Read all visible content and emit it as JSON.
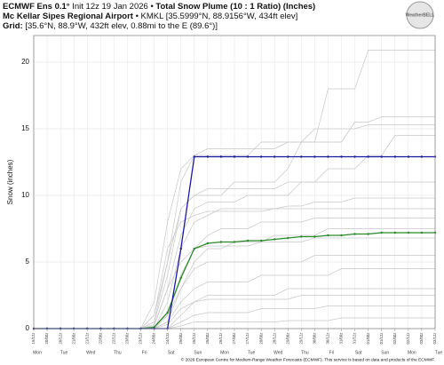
{
  "chart_data": {
    "type": "line",
    "title_model": "ECMWF Ens 0.1°",
    "title_init": "Init 12z 19 Jan 2026 •",
    "title": "Total Snow Plume (10 : 1 Ratio) (Inches)",
    "station": "Mc Kellar Sipes Regional Airport",
    "station_info": "• KMKL [35.5999°N, 88.9156°W, 434ft elev]",
    "grid_label": "Grid:",
    "grid_info": "[35.6°N, 88.9°W, 432ft elev, 0.88mi to the E (89.6°)]",
    "logo": "WeatherBELL",
    "y_label": "Snow (inches)",
    "footer": "© 2026 European Centre for Medium-Range Weather Forecasts (ECMWF). This service is based on data and products of the ECMWF.",
    "grid": true,
    "xlim": [
      0,
      360
    ],
    "ylim": [
      0,
      22
    ],
    "yticks": [
      0,
      5,
      10,
      15,
      20
    ],
    "xticks": [
      {
        "value": 0,
        "label": "19/12z"
      },
      {
        "value": 12,
        "label": "20/00z"
      },
      {
        "value": 24,
        "label": "20/12z"
      },
      {
        "value": 36,
        "label": "21/00z"
      },
      {
        "value": 48,
        "label": "21/12z"
      },
      {
        "value": 60,
        "label": "22/00z"
      },
      {
        "value": 72,
        "label": "22/12z"
      },
      {
        "value": 84,
        "label": "23/00z"
      },
      {
        "value": 96,
        "label": "23/12z"
      },
      {
        "value": 108,
        "label": "24/00z"
      },
      {
        "value": 120,
        "label": "24/12z"
      },
      {
        "value": 132,
        "label": "25/00z"
      },
      {
        "value": 144,
        "label": "25/12z"
      },
      {
        "value": 156,
        "label": "26/00z"
      },
      {
        "value": 168,
        "label": "26/12z"
      },
      {
        "value": 180,
        "label": "27/00z"
      },
      {
        "value": 192,
        "label": "27/12z"
      },
      {
        "value": 204,
        "label": "28/00z"
      },
      {
        "value": 216,
        "label": "28/12z"
      },
      {
        "value": 228,
        "label": "29/00z"
      },
      {
        "value": 240,
        "label": "29/12z"
      },
      {
        "value": 252,
        "label": "30/00z"
      },
      {
        "value": 264,
        "label": "30/12z"
      },
      {
        "value": 276,
        "label": "31/00z"
      },
      {
        "value": 288,
        "label": "31/12z"
      },
      {
        "value": 300,
        "label": "01/00z"
      },
      {
        "value": 312,
        "label": "01/12z"
      },
      {
        "value": 324,
        "label": "02/00z"
      },
      {
        "value": 336,
        "label": "02/12z"
      },
      {
        "value": 348,
        "label": "03/00z"
      },
      {
        "value": 360,
        "label": "03/12z"
      }
    ],
    "day_ticks": [
      {
        "value": 0,
        "label": "Mon"
      },
      {
        "value": 24,
        "label": "Tue"
      },
      {
        "value": 48,
        "label": "Wed"
      },
      {
        "value": 72,
        "label": "Thu"
      },
      {
        "value": 96,
        "label": "Fri"
      },
      {
        "value": 120,
        "label": "Sat"
      },
      {
        "value": 144,
        "label": "Sun"
      },
      {
        "value": 168,
        "label": "Mon"
      },
      {
        "value": 192,
        "label": "Tue"
      },
      {
        "value": 216,
        "label": "Wed"
      },
      {
        "value": 240,
        "label": "Thu"
      },
      {
        "value": 264,
        "label": "Fri"
      },
      {
        "value": 288,
        "label": "Sat"
      },
      {
        "value": 312,
        "label": "Sun"
      },
      {
        "value": 336,
        "label": "Mon"
      },
      {
        "value": 360,
        "label": "Tue"
      }
    ],
    "x": [
      0,
      12,
      24,
      36,
      48,
      60,
      72,
      84,
      96,
      108,
      120,
      132,
      144,
      156,
      168,
      180,
      192,
      204,
      216,
      228,
      240,
      252,
      264,
      276,
      288,
      300,
      312,
      324,
      336,
      348,
      360
    ],
    "series": [
      {
        "color": "#c8c8c8",
        "values": [
          0,
          0,
          0,
          0,
          0,
          0,
          0,
          0,
          0,
          1,
          5,
          11,
          13,
          13.5,
          13.5,
          13.5,
          13.5,
          13.5,
          13.5,
          14,
          14,
          14,
          18,
          18,
          18,
          20.9,
          20.9,
          20.9,
          20.9,
          20.9,
          20.9
        ]
      },
      {
        "color": "#c8c8c8",
        "values": [
          0,
          0,
          0,
          0,
          0,
          0,
          0,
          0,
          0,
          0.5,
          4,
          9,
          10,
          10,
          10,
          11,
          11,
          11,
          11,
          12,
          14,
          14,
          14,
          14,
          15.5,
          15.5,
          15.9,
          15.9,
          15.9,
          15.9,
          15.9
        ]
      },
      {
        "color": "#c8c8c8",
        "values": [
          0,
          0,
          0,
          0,
          0,
          0,
          0,
          0,
          0,
          2,
          8,
          12,
          13,
          13,
          13,
          13,
          13,
          14,
          14,
          14,
          14,
          15,
          15,
          15,
          15,
          15.3,
          15.3,
          15.3,
          15.3,
          15.3,
          15.3
        ]
      },
      {
        "color": "#c8c8c8",
        "values": [
          0,
          0,
          0,
          0,
          0,
          0,
          0,
          0,
          0,
          0.3,
          3,
          7,
          9,
          9.5,
          9.5,
          9.5,
          10,
          10,
          10,
          10,
          11,
          11,
          12,
          12,
          12,
          13,
          13,
          14.5,
          14.5,
          14.5,
          14.5
        ]
      },
      {
        "color": "#c8c8c8",
        "values": [
          0,
          0,
          0,
          0,
          0,
          0,
          0,
          0,
          0,
          0.5,
          5,
          9,
          10,
          10.5,
          10.5,
          10.5,
          10.5,
          10.5,
          10.5,
          11,
          11,
          11,
          11,
          11,
          11,
          11,
          11,
          11,
          11,
          11,
          11
        ]
      },
      {
        "color": "#c8c8c8",
        "values": [
          0,
          0,
          0,
          0,
          0,
          0,
          0,
          0,
          0,
          0,
          2,
          6,
          8,
          8.5,
          9,
          9,
          9,
          9,
          9,
          9.2,
          9.2,
          9.5,
          9.5,
          9.5,
          9.8,
          9.8,
          9.8,
          9.8,
          9.8,
          9.8,
          9.8
        ]
      },
      {
        "color": "#c8c8c8",
        "values": [
          0,
          0,
          0,
          0,
          0,
          0,
          0,
          0,
          0,
          1,
          6,
          8,
          8.5,
          8.8,
          8.8,
          8.8,
          8.8,
          8.8,
          9,
          9,
          9,
          9,
          9,
          9,
          9,
          9,
          9,
          9,
          9,
          9,
          9
        ]
      },
      {
        "color": "#c8c8c8",
        "values": [
          0,
          0,
          0,
          0,
          0,
          0,
          0,
          0,
          0,
          0,
          1,
          4,
          6,
          7,
          7.5,
          7.5,
          7.5,
          8,
          8,
          8,
          8,
          8.3,
          8.3,
          8.3,
          8.3,
          8.3,
          8.3,
          8.3,
          8.3,
          8.3,
          8.3
        ]
      },
      {
        "color": "#c8c8c8",
        "values": [
          0,
          0,
          0,
          0,
          0,
          0,
          0,
          0,
          0,
          0,
          0.5,
          3,
          5,
          6,
          6,
          6.5,
          6.5,
          6.5,
          7,
          7,
          7,
          7,
          7.5,
          7.5,
          7.5,
          7.5,
          7.5,
          7.5,
          7.5,
          7.5,
          7.5
        ]
      },
      {
        "color": "#c8c8c8",
        "values": [
          0,
          0,
          0,
          0,
          0,
          0,
          0,
          0,
          0,
          0.2,
          3,
          5,
          6,
          6.2,
          6.2,
          6.2,
          6.2,
          6.5,
          6.5,
          6.5,
          6.5,
          6.8,
          6.8,
          6.8,
          6.8,
          6.8,
          6.8,
          6.8,
          6.8,
          6.8,
          6.8
        ]
      },
      {
        "color": "#c8c8c8",
        "values": [
          0,
          0,
          0,
          0,
          0,
          0,
          0,
          0,
          0,
          0,
          1,
          3,
          4.5,
          5,
          5,
          5,
          5,
          5,
          5,
          5,
          5,
          5.5,
          5.5,
          5.5,
          5.5,
          5.5,
          5.5,
          5.5,
          5.5,
          5.5,
          5.5
        ]
      },
      {
        "color": "#c8c8c8",
        "values": [
          0,
          0,
          0,
          0,
          0,
          0,
          0,
          0,
          0,
          0,
          0.5,
          2,
          3,
          3.5,
          3.5,
          3.5,
          3.5,
          4,
          4,
          4,
          4,
          4,
          4,
          4.5,
          4.5,
          4.5,
          4.5,
          4.5,
          4.5,
          4.5,
          4.5
        ]
      },
      {
        "color": "#c8c8c8",
        "values": [
          0,
          0,
          0,
          0,
          0,
          0,
          0,
          0,
          0,
          0,
          0,
          1,
          2,
          2.5,
          2.5,
          2.5,
          2.5,
          2.5,
          2.5,
          3,
          3,
          3,
          3,
          3,
          3,
          3,
          3,
          3,
          3,
          3,
          3
        ]
      },
      {
        "color": "#c8c8c8",
        "values": [
          0,
          0,
          0,
          0,
          0,
          0,
          0,
          0,
          0,
          0,
          0.3,
          1.5,
          2,
          2.2,
          2.2,
          2.2,
          2.2,
          2.2,
          2.2,
          2.2,
          2.5,
          2.5,
          2.5,
          2.5,
          2.5,
          2.5,
          2.5,
          2.5,
          2.5,
          2.5,
          2.5
        ]
      },
      {
        "color": "#c8c8c8",
        "values": [
          0,
          0,
          0,
          0,
          0,
          0,
          0,
          0,
          0,
          0,
          0,
          0.5,
          1,
          1.2,
          1.2,
          1.2,
          1.2,
          1.5,
          1.5,
          1.5,
          1.5,
          1.5,
          1.7,
          1.7,
          1.7,
          1.7,
          1.7,
          1.7,
          1.7,
          1.7,
          1.7
        ]
      },
      {
        "color": "#c8c8c8",
        "values": [
          0,
          0,
          0,
          0,
          0,
          0,
          0,
          0,
          0,
          0,
          0,
          0.2,
          0.5,
          0.5,
          0.5,
          0.5,
          0.5,
          0.5,
          0.5,
          0.6,
          0.6,
          0.6,
          0.6,
          0.8,
          0.8,
          0.8,
          0.8,
          0.8,
          0.8,
          0.8,
          0.8
        ]
      },
      {
        "color": "#2a8a2a",
        "markers": true,
        "values": [
          0,
          0,
          0,
          0,
          0,
          0,
          0,
          0,
          0,
          0.1,
          1.2,
          3.8,
          6.0,
          6.4,
          6.5,
          6.5,
          6.6,
          6.6,
          6.7,
          6.8,
          6.9,
          6.9,
          7.0,
          7.0,
          7.1,
          7.1,
          7.2,
          7.2,
          7.2,
          7.2,
          7.2
        ]
      },
      {
        "color": "#1a1aa0",
        "markers": true,
        "values": [
          0,
          0,
          0,
          0,
          0,
          0,
          0,
          0,
          0,
          0,
          0,
          6,
          12.9,
          12.9,
          12.9,
          12.9,
          12.9,
          12.9,
          12.9,
          12.9,
          12.9,
          12.9,
          12.9,
          12.9,
          12.9,
          12.9,
          12.9,
          12.9,
          12.9,
          12.9,
          12.9
        ]
      }
    ]
  }
}
